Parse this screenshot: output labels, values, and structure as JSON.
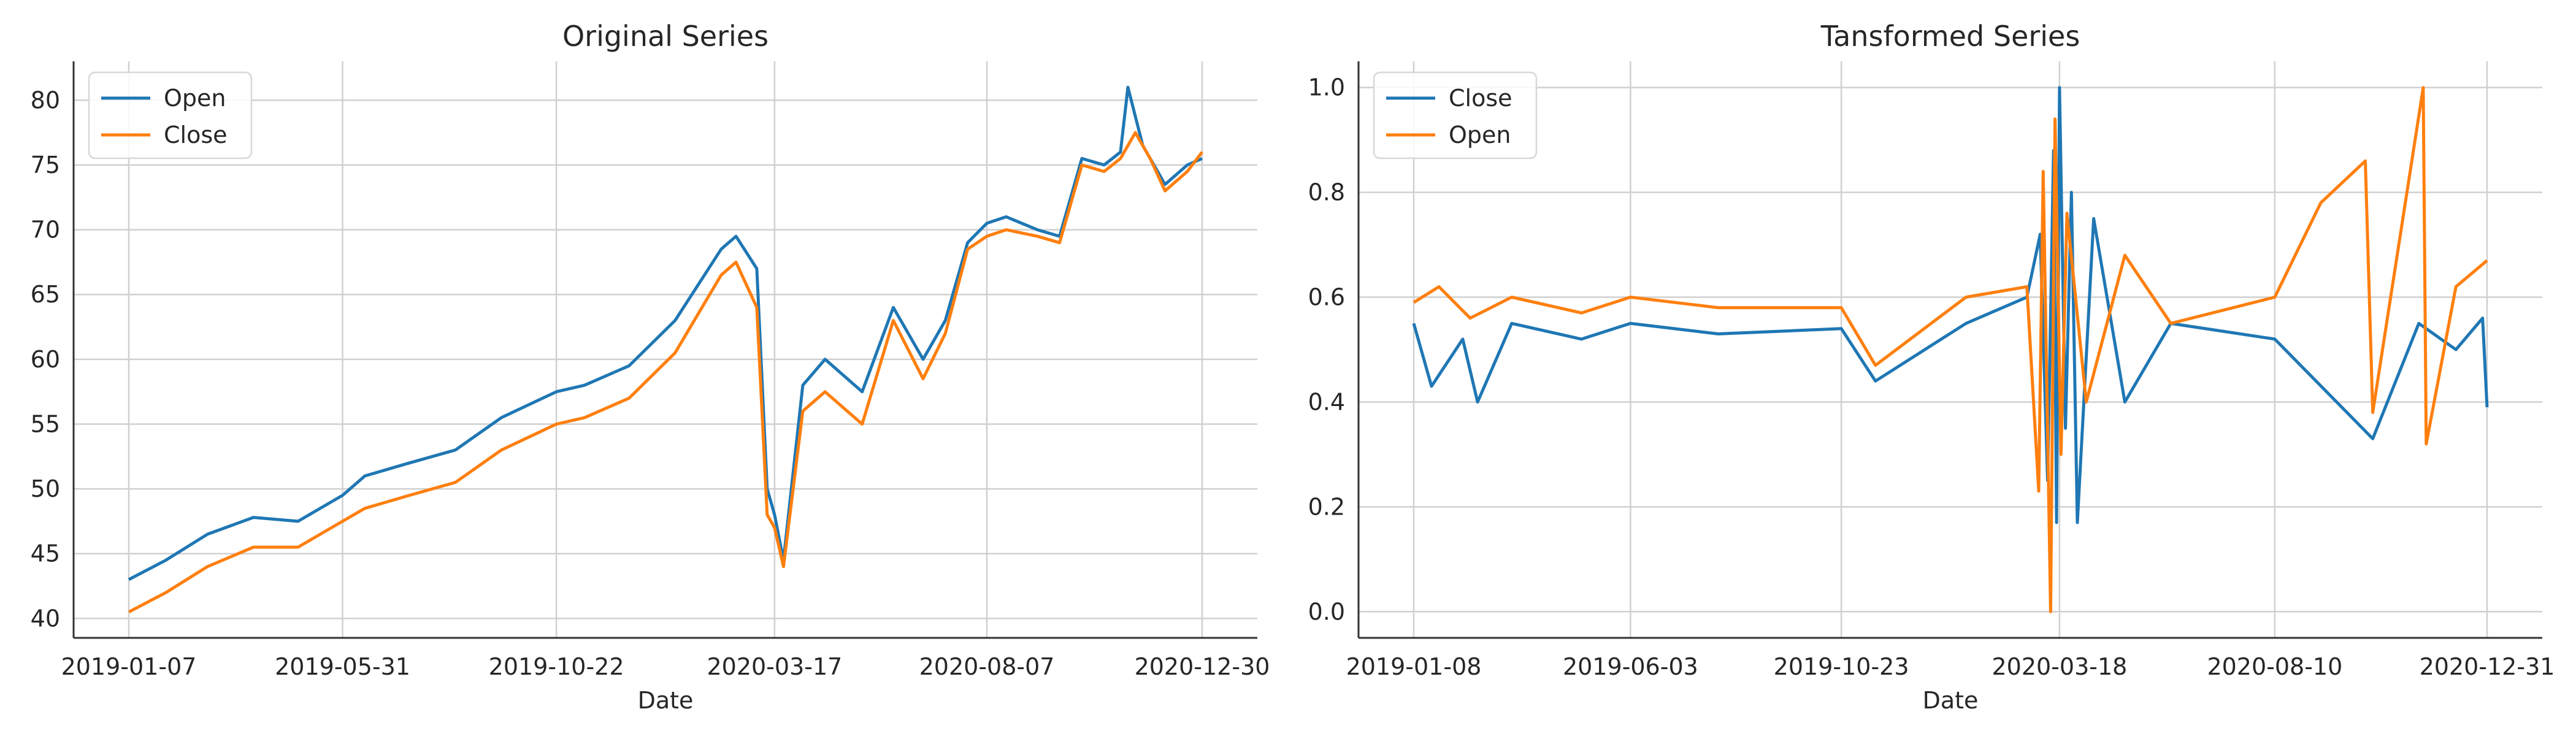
{
  "chart_data": [
    {
      "type": "line",
      "title": "Original Series",
      "xlabel": "Date",
      "ylabel": "",
      "x_ticks": [
        "2019-01-07",
        "2019-05-31",
        "2019-10-22",
        "2020-03-17",
        "2020-08-07",
        "2020-12-30"
      ],
      "ylim": [
        38.5,
        83.0
      ],
      "y_ticks": [
        40,
        45,
        50,
        55,
        60,
        65,
        70,
        75,
        80
      ],
      "grid": true,
      "legend": "top-left",
      "series": [
        {
          "name": "Open",
          "color": "#1f77b4",
          "points": [
            [
              "2019-01-07",
              43.0
            ],
            [
              "2019-02-01",
              44.5
            ],
            [
              "2019-03-01",
              46.5
            ],
            [
              "2019-04-01",
              47.8
            ],
            [
              "2019-05-01",
              47.5
            ],
            [
              "2019-05-31",
              49.5
            ],
            [
              "2019-06-15",
              51.0
            ],
            [
              "2019-07-15",
              52.0
            ],
            [
              "2019-08-15",
              53.0
            ],
            [
              "2019-09-15",
              55.5
            ],
            [
              "2019-10-22",
              57.5
            ],
            [
              "2019-11-10",
              58.0
            ],
            [
              "2019-12-10",
              59.5
            ],
            [
              "2020-01-10",
              63.0
            ],
            [
              "2020-02-10",
              68.5
            ],
            [
              "2020-02-20",
              69.5
            ],
            [
              "2020-03-05",
              67.0
            ],
            [
              "2020-03-12",
              50.0
            ],
            [
              "2020-03-17",
              48.0
            ],
            [
              "2020-03-23",
              44.5
            ],
            [
              "2020-04-05",
              58.0
            ],
            [
              "2020-04-20",
              60.0
            ],
            [
              "2020-05-15",
              57.5
            ],
            [
              "2020-06-05",
              64.0
            ],
            [
              "2020-06-25",
              60.0
            ],
            [
              "2020-07-10",
              63.0
            ],
            [
              "2020-07-25",
              69.0
            ],
            [
              "2020-08-07",
              70.5
            ],
            [
              "2020-08-20",
              71.0
            ],
            [
              "2020-09-10",
              70.0
            ],
            [
              "2020-09-25",
              69.5
            ],
            [
              "2020-10-10",
              75.5
            ],
            [
              "2020-10-25",
              75.0
            ],
            [
              "2020-11-05",
              76.0
            ],
            [
              "2020-11-10",
              81.0
            ],
            [
              "2020-11-20",
              76.5
            ],
            [
              "2020-12-05",
              73.5
            ],
            [
              "2020-12-20",
              75.0
            ],
            [
              "2020-12-30",
              75.5
            ]
          ]
        },
        {
          "name": "Close",
          "color": "#ff7f0e",
          "points": [
            [
              "2019-01-07",
              40.5
            ],
            [
              "2019-02-01",
              42.0
            ],
            [
              "2019-03-01",
              44.0
            ],
            [
              "2019-04-01",
              45.5
            ],
            [
              "2019-05-01",
              45.5
            ],
            [
              "2019-05-31",
              47.5
            ],
            [
              "2019-06-15",
              48.5
            ],
            [
              "2019-07-15",
              49.5
            ],
            [
              "2019-08-15",
              50.5
            ],
            [
              "2019-09-15",
              53.0
            ],
            [
              "2019-10-22",
              55.0
            ],
            [
              "2019-11-10",
              55.5
            ],
            [
              "2019-12-10",
              57.0
            ],
            [
              "2020-01-10",
              60.5
            ],
            [
              "2020-02-10",
              66.5
            ],
            [
              "2020-02-20",
              67.5
            ],
            [
              "2020-03-05",
              64.0
            ],
            [
              "2020-03-12",
              48.0
            ],
            [
              "2020-03-17",
              47.0
            ],
            [
              "2020-03-23",
              44.0
            ],
            [
              "2020-04-05",
              56.0
            ],
            [
              "2020-04-20",
              57.5
            ],
            [
              "2020-05-15",
              55.0
            ],
            [
              "2020-06-05",
              63.0
            ],
            [
              "2020-06-25",
              58.5
            ],
            [
              "2020-07-10",
              62.0
            ],
            [
              "2020-07-25",
              68.5
            ],
            [
              "2020-08-07",
              69.5
            ],
            [
              "2020-08-20",
              70.0
            ],
            [
              "2020-09-10",
              69.5
            ],
            [
              "2020-09-25",
              69.0
            ],
            [
              "2020-10-10",
              75.0
            ],
            [
              "2020-10-25",
              74.5
            ],
            [
              "2020-11-05",
              75.5
            ],
            [
              "2020-11-15",
              77.5
            ],
            [
              "2020-11-25",
              75.5
            ],
            [
              "2020-12-05",
              73.0
            ],
            [
              "2020-12-20",
              74.5
            ],
            [
              "2020-12-30",
              76.0
            ]
          ]
        }
      ]
    },
    {
      "type": "line",
      "title": "Tansformed Series",
      "xlabel": "Date",
      "ylabel": "",
      "x_ticks": [
        "2019-01-08",
        "2019-06-03",
        "2019-10-23",
        "2020-03-18",
        "2020-08-10",
        "2020-12-31"
      ],
      "ylim": [
        -0.05,
        1.05
      ],
      "y_ticks": [
        "0.0",
        "0.2",
        "0.4",
        "0.6",
        "0.8",
        "1.0"
      ],
      "grid": true,
      "legend": "top-left",
      "series": [
        {
          "name": "Close",
          "color": "#1f77b4",
          "points": [
            [
              "2019-01-08",
              0.55
            ],
            [
              "2019-01-20",
              0.43
            ],
            [
              "2019-02-10",
              0.52
            ],
            [
              "2019-02-20",
              0.4
            ],
            [
              "2019-03-15",
              0.55
            ],
            [
              "2019-05-01",
              0.52
            ],
            [
              "2019-06-03",
              0.55
            ],
            [
              "2019-08-01",
              0.53
            ],
            [
              "2019-10-23",
              0.54
            ],
            [
              "2019-11-15",
              0.44
            ],
            [
              "2020-01-15",
              0.55
            ],
            [
              "2020-02-25",
              0.6
            ],
            [
              "2020-03-05",
              0.72
            ],
            [
              "2020-03-10",
              0.25
            ],
            [
              "2020-03-14",
              0.88
            ],
            [
              "2020-03-16",
              0.17
            ],
            [
              "2020-03-18",
              1.0
            ],
            [
              "2020-03-22",
              0.35
            ],
            [
              "2020-03-26",
              0.8
            ],
            [
              "2020-03-30",
              0.17
            ],
            [
              "2020-04-10",
              0.75
            ],
            [
              "2020-05-01",
              0.4
            ],
            [
              "2020-06-01",
              0.55
            ],
            [
              "2020-08-10",
              0.52
            ],
            [
              "2020-10-15",
              0.33
            ],
            [
              "2020-11-15",
              0.55
            ],
            [
              "2020-12-10",
              0.5
            ],
            [
              "2020-12-28",
              0.56
            ],
            [
              "2020-12-31",
              0.39
            ]
          ]
        },
        {
          "name": "Open",
          "color": "#ff7f0e",
          "points": [
            [
              "2019-01-08",
              0.59
            ],
            [
              "2019-01-25",
              0.62
            ],
            [
              "2019-02-15",
              0.56
            ],
            [
              "2019-03-15",
              0.6
            ],
            [
              "2019-05-01",
              0.57
            ],
            [
              "2019-06-03",
              0.6
            ],
            [
              "2019-08-01",
              0.58
            ],
            [
              "2019-10-23",
              0.58
            ],
            [
              "2019-11-15",
              0.47
            ],
            [
              "2020-01-15",
              0.6
            ],
            [
              "2020-02-25",
              0.62
            ],
            [
              "2020-03-04",
              0.23
            ],
            [
              "2020-03-07",
              0.84
            ],
            [
              "2020-03-12",
              0.0
            ],
            [
              "2020-03-15",
              0.94
            ],
            [
              "2020-03-19",
              0.3
            ],
            [
              "2020-03-23",
              0.76
            ],
            [
              "2020-04-05",
              0.4
            ],
            [
              "2020-05-01",
              0.68
            ],
            [
              "2020-06-01",
              0.55
            ],
            [
              "2020-08-10",
              0.6
            ],
            [
              "2020-09-10",
              0.78
            ],
            [
              "2020-10-10",
              0.86
            ],
            [
              "2020-10-15",
              0.38
            ],
            [
              "2020-11-18",
              1.0
            ],
            [
              "2020-11-20",
              0.32
            ],
            [
              "2020-12-10",
              0.62
            ],
            [
              "2020-12-31",
              0.67
            ]
          ]
        }
      ]
    }
  ]
}
